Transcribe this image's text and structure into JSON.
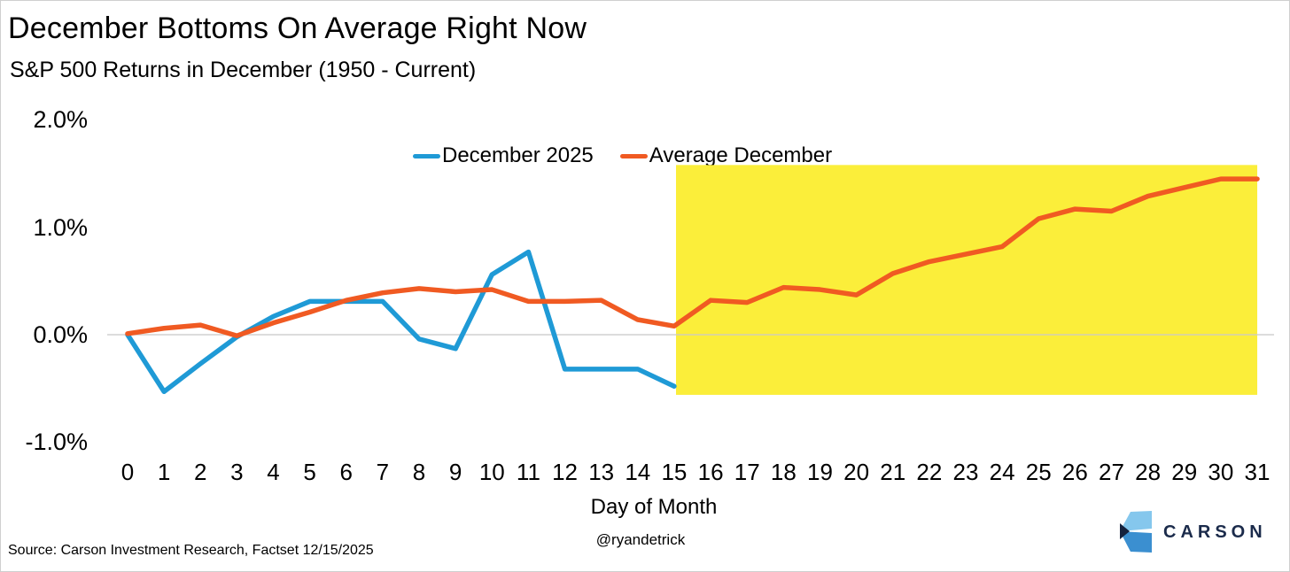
{
  "title": "December Bottoms On Average Right Now",
  "subtitle": "S&P 500 Returns in December (1950 - Current)",
  "footer": {
    "source": "Source: Carson Investment Research, Factset 12/15/2025",
    "handle": "@ryandetrick",
    "logo_text": "CARSON"
  },
  "colors": {
    "december_2025_line": "#1F9AD6",
    "average_december_line": "#F05A22",
    "highlight_yellow": "#FBEE3A",
    "zero_gridline": "#C9C9C9",
    "logo_navy": "#1B2B4B",
    "logo_light_blue": "#85C7ED",
    "logo_mid_blue": "#3B8FD0"
  },
  "chart_data": {
    "type": "line",
    "title": "December Bottoms On Average Right Now",
    "subtitle": "S&P 500 Returns in December (1950 - Current)",
    "xlabel": "Day of Month",
    "ylabel": "",
    "x": [
      0,
      1,
      2,
      3,
      4,
      5,
      6,
      7,
      8,
      9,
      10,
      11,
      12,
      13,
      14,
      15,
      16,
      17,
      18,
      19,
      20,
      21,
      22,
      23,
      24,
      25,
      26,
      27,
      28,
      29,
      30,
      31
    ],
    "xtick_labels": [
      "0",
      "1",
      "2",
      "3",
      "4",
      "5",
      "6",
      "7",
      "8",
      "9",
      "10",
      "11",
      "12",
      "13",
      "14",
      "15",
      "16",
      "17",
      "18",
      "19",
      "20",
      "21",
      "22",
      "23",
      "24",
      "25",
      "26",
      "27",
      "28",
      "29",
      "30",
      "31"
    ],
    "ytick_labels": [
      "2.0%",
      "1.0%",
      "0.0%",
      "-1.0%"
    ],
    "ytick_values": [
      2.0,
      1.0,
      0.0,
      -1.0
    ],
    "ylim": [
      -1.2,
      2.2
    ],
    "grid": "zero-line-only",
    "legend_position": "top-center",
    "series": [
      {
        "name": "December 2025",
        "color": "#1F9AD6",
        "values": [
          0.0,
          -0.53,
          -0.27,
          -0.02,
          0.17,
          0.31,
          0.31,
          0.31,
          -0.04,
          -0.13,
          0.56,
          0.77,
          -0.32,
          -0.32,
          -0.32,
          -0.48
        ]
      },
      {
        "name": "Average December",
        "color": "#F05A22",
        "values": [
          0.01,
          0.06,
          0.09,
          -0.01,
          0.11,
          0.21,
          0.32,
          0.39,
          0.43,
          0.4,
          0.42,
          0.31,
          0.31,
          0.32,
          0.14,
          0.08,
          0.32,
          0.3,
          0.44,
          0.42,
          0.37,
          0.57,
          0.68,
          0.75,
          0.82,
          1.08,
          1.17,
          1.15,
          1.29,
          1.37,
          1.45,
          1.45
        ]
      }
    ],
    "highlight_region": {
      "x_start": 15.05,
      "x_end": 31,
      "y_start": -0.56,
      "y_end": 1.58,
      "color": "#FBEE3A"
    }
  }
}
